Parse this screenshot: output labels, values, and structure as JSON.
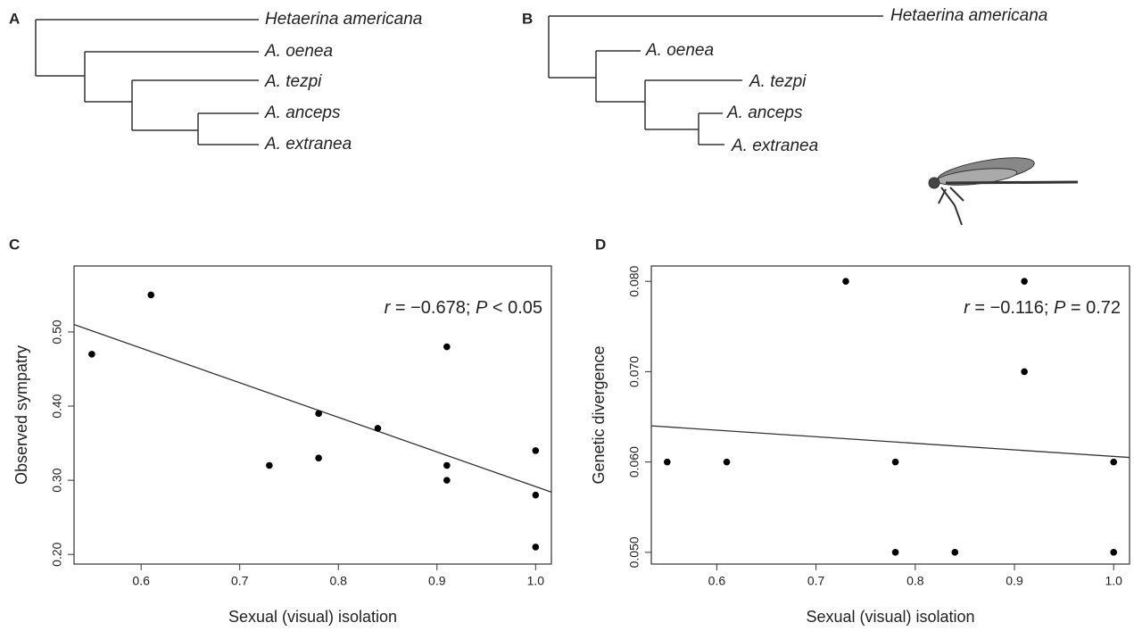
{
  "trees": [
    {
      "label": "A",
      "leaves": [
        "Hetaerina americana",
        "A. oenea",
        "A. tezpi",
        "A. anceps",
        "A. extranea"
      ]
    },
    {
      "label": "B",
      "leaves": [
        "Hetaerina americana",
        "A. oenea",
        "A. tezpi",
        "A. anceps",
        "A. extranea"
      ]
    }
  ],
  "chart_data": [
    {
      "type": "scatter",
      "panel": "C",
      "x_label": "Sexual (visual) isolation",
      "y_label": "Observed sympatry",
      "annotation": [
        {
          "text": "r",
          "italic": true
        },
        {
          "text": " = −0.678; ",
          "italic": false
        },
        {
          "text": "P",
          "italic": true
        },
        {
          "text": " < 0.05",
          "italic": false
        }
      ],
      "x": [
        0.55,
        0.61,
        0.73,
        0.78,
        0.78,
        0.84,
        0.91,
        0.91,
        0.91,
        1.0,
        1.0,
        1.0
      ],
      "values": [
        0.47,
        0.55,
        0.32,
        0.39,
        0.33,
        0.37,
        0.48,
        0.32,
        0.3,
        0.34,
        0.28,
        0.21
      ],
      "fit": {
        "x": [
          0.532,
          1.016
        ],
        "y": [
          0.51,
          0.284
        ]
      },
      "color": "#000000",
      "xlim": [
        0.532,
        1.016
      ],
      "ylim": [
        0.187,
        0.589
      ],
      "xticks": [
        0.6,
        0.7,
        0.8,
        0.9,
        {
          "value": 1.0,
          "label": "1.0"
        }
      ],
      "yticks": [
        {
          "value": 0.2,
          "label": "0.20"
        },
        {
          "value": 0.3,
          "label": "0.30"
        },
        {
          "value": 0.4,
          "label": "0.40"
        },
        {
          "value": 0.5,
          "label": "0.50"
        }
      ]
    },
    {
      "type": "scatter",
      "panel": "D",
      "x_label": "Sexual (visual) isolation",
      "y_label": "Genetic divergence",
      "annotation": [
        {
          "text": "r",
          "italic": true
        },
        {
          "text": " = −0.116; ",
          "italic": false
        },
        {
          "text": "P",
          "italic": true
        },
        {
          "text": " = 0.72",
          "italic": false
        }
      ],
      "x": [
        0.55,
        0.61,
        0.73,
        0.78,
        0.78,
        0.84,
        0.91,
        0.91,
        1.0,
        1.0
      ],
      "values": [
        0.06,
        0.06,
        0.08,
        0.06,
        0.05,
        0.05,
        0.08,
        0.07,
        0.06,
        0.05
      ],
      "fit": {
        "x": [
          0.534,
          1.016
        ],
        "y": [
          0.064,
          0.0605
        ]
      },
      "color": "#000000",
      "xlim": [
        0.534,
        1.016
      ],
      "ylim": [
        0.0487,
        0.0817
      ],
      "xticks": [
        0.6,
        0.7,
        0.8,
        0.9,
        {
          "value": 1.0,
          "label": "1.0"
        }
      ],
      "yticks": [
        {
          "value": 0.05,
          "label": "0.050"
        },
        {
          "value": 0.06,
          "label": "0.060"
        },
        {
          "value": 0.07,
          "label": "0.070"
        },
        {
          "value": 0.08,
          "label": "0.080"
        }
      ]
    }
  ]
}
